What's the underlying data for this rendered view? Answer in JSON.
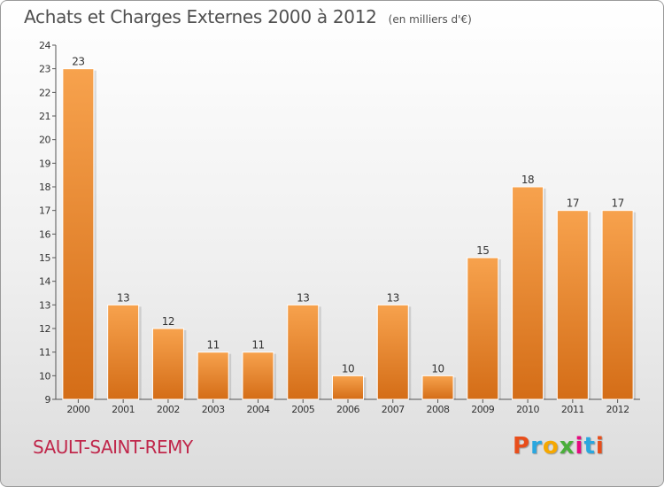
{
  "header": {
    "title": "Achats et Charges Externes 2000 à 2012",
    "unit": "(en milliers d'€)"
  },
  "footer": {
    "town": "SAULT-SAINT-REMY",
    "brand": "Proxiti",
    "brand_colors": [
      "#e84e1b",
      "#2aa7df",
      "#f6a800",
      "#4aae3a",
      "#e5097f",
      "#2aa7df",
      "#e84e1b"
    ]
  },
  "colors": {
    "bar_light": "#f7a24d",
    "bar_dark": "#d46d17",
    "axis": "#555555",
    "grid": "#cfcfcf"
  },
  "chart_data": {
    "type": "bar",
    "title": "Achats et Charges Externes 2000 à 2012",
    "subtitle": "(en milliers d'€)",
    "categories": [
      "2000",
      "2001",
      "2002",
      "2003",
      "2004",
      "2005",
      "2006",
      "2007",
      "2008",
      "2009",
      "2010",
      "2011",
      "2012"
    ],
    "values": [
      23,
      13,
      12,
      11,
      11,
      13,
      10,
      13,
      10,
      15,
      18,
      17,
      17
    ],
    "ylim": [
      9,
      24
    ],
    "yticks": [
      9,
      10,
      11,
      12,
      13,
      14,
      15,
      16,
      17,
      18,
      19,
      20,
      21,
      22,
      23,
      24
    ],
    "grid": false,
    "data_labels": true
  }
}
